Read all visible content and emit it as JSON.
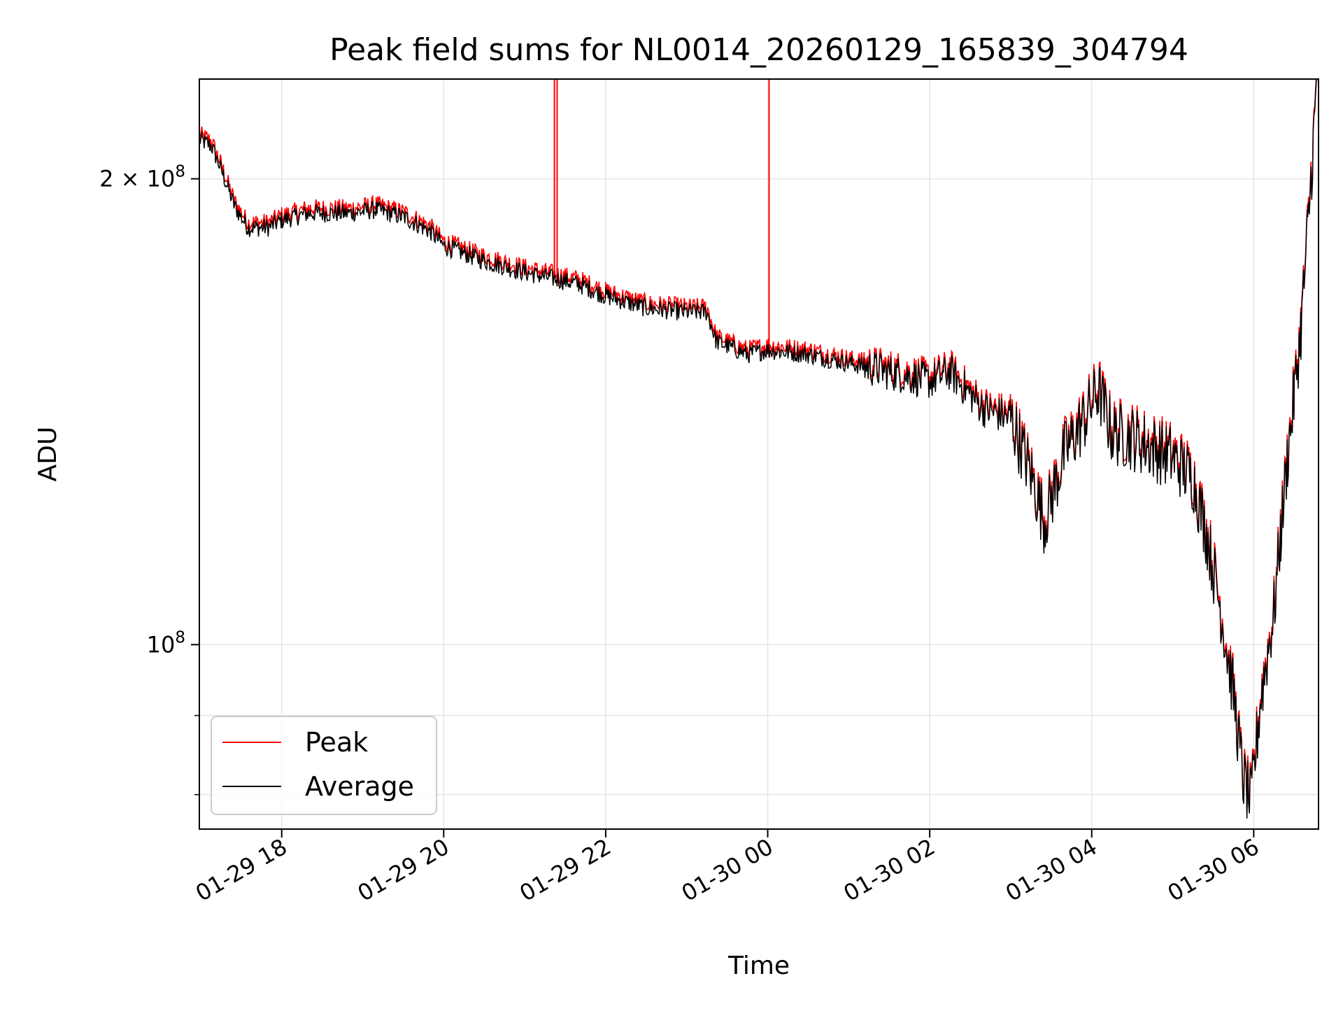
{
  "chart_data": {
    "type": "line",
    "title": "Peak field sums for NL0014_20260129_165839_304794",
    "xlabel": "Time",
    "ylabel": "ADU",
    "x_axis": {
      "type": "time",
      "range": [
        "2026-01-29 16:59",
        "2026-01-30 06:48"
      ],
      "ticks": [
        {
          "value": "2026-01-29 18:00",
          "label": "01-29 18"
        },
        {
          "value": "2026-01-29 20:00",
          "label": "01-29 20"
        },
        {
          "value": "2026-01-29 22:00",
          "label": "01-29 22"
        },
        {
          "value": "2026-01-30 00:00",
          "label": "01-30 00"
        },
        {
          "value": "2026-01-30 02:00",
          "label": "01-30 02"
        },
        {
          "value": "2026-01-30 04:00",
          "label": "01-30 04"
        },
        {
          "value": "2026-01-30 06:00",
          "label": "01-30 06"
        }
      ]
    },
    "y_axis": {
      "scale": "log",
      "range": [
        76000000,
        232000000
      ],
      "major_ticks": [
        {
          "value": 100000000,
          "label_base": "10",
          "label_exp": "8",
          "label_mult": ""
        },
        {
          "value": 200000000,
          "label_base": "10",
          "label_exp": "8",
          "label_mult": "2 × "
        }
      ],
      "minor_ticks": [
        80000000,
        90000000
      ]
    },
    "grid": true,
    "legend": {
      "placement": "lower-left",
      "entries": [
        {
          "name": "Peak",
          "color": "#ff0000"
        },
        {
          "name": "Average",
          "color": "#000000"
        }
      ]
    },
    "series": [
      {
        "name": "Average",
        "color": "#000000",
        "points": [
          [
            "2026-01-29 16:59",
            212000000
          ],
          [
            "2026-01-29 17:08",
            210000000
          ],
          [
            "2026-01-29 17:15",
            203000000
          ],
          [
            "2026-01-29 17:25",
            192000000
          ],
          [
            "2026-01-29 17:35",
            186000000
          ],
          [
            "2026-01-29 17:50",
            186000000
          ],
          [
            "2026-01-29 18:00",
            188000000
          ],
          [
            "2026-01-29 18:20",
            190000000
          ],
          [
            "2026-01-29 18:50",
            190000000
          ],
          [
            "2026-01-29 19:10",
            191000000
          ],
          [
            "2026-01-29 19:30",
            189000000
          ],
          [
            "2026-01-29 19:50",
            185000000
          ],
          [
            "2026-01-29 20:00",
            181000000
          ],
          [
            "2026-01-29 20:30",
            177000000
          ],
          [
            "2026-01-29 21:00",
            174000000
          ],
          [
            "2026-01-29 21:40",
            171000000
          ],
          [
            "2026-01-29 22:00",
            168000000
          ],
          [
            "2026-01-29 22:30",
            165000000
          ],
          [
            "2026-01-29 23:00",
            164000000
          ],
          [
            "2026-01-29 23:15",
            164000000
          ],
          [
            "2026-01-29 23:22",
            157000000
          ],
          [
            "2026-01-29 23:45",
            154000000
          ],
          [
            "2026-01-30 00:00",
            155000000
          ],
          [
            "2026-01-30 00:30",
            154000000
          ],
          [
            "2026-01-30 01:00",
            152000000
          ],
          [
            "2026-01-30 01:30",
            150000000
          ],
          [
            "2026-01-30 02:00",
            148000000
          ],
          [
            "2026-01-30 02:15",
            150000000
          ],
          [
            "2026-01-30 02:40",
            142000000
          ],
          [
            "2026-01-30 03:00",
            140000000
          ],
          [
            "2026-01-30 03:15",
            129000000
          ],
          [
            "2026-01-30 03:25",
            120000000
          ],
          [
            "2026-01-30 03:40",
            133000000
          ],
          [
            "2026-01-30 03:55",
            140000000
          ],
          [
            "2026-01-30 04:05",
            146000000
          ],
          [
            "2026-01-30 04:15",
            137000000
          ],
          [
            "2026-01-30 04:30",
            136000000
          ],
          [
            "2026-01-30 05:00",
            132000000
          ],
          [
            "2026-01-30 05:15",
            128000000
          ],
          [
            "2026-01-30 05:25",
            118000000
          ],
          [
            "2026-01-30 05:35",
            106000000
          ],
          [
            "2026-01-30 05:45",
            93000000
          ],
          [
            "2026-01-30 05:52",
            82000000
          ],
          [
            "2026-01-30 05:58",
            79000000
          ],
          [
            "2026-01-30 06:05",
            92000000
          ],
          [
            "2026-01-30 06:15",
            105000000
          ],
          [
            "2026-01-30 06:20",
            118000000
          ],
          [
            "2026-01-30 06:25",
            132000000
          ],
          [
            "2026-01-30 06:30",
            145000000
          ],
          [
            "2026-01-30 06:35",
            160000000
          ],
          [
            "2026-01-30 06:40",
            185000000
          ],
          [
            "2026-01-30 06:44",
            210000000
          ],
          [
            "2026-01-30 06:47",
            232000000
          ]
        ]
      },
      {
        "name": "Peak",
        "color": "#ff0000",
        "spikes": [
          [
            "2026-01-29 21:22",
            232000000
          ],
          [
            "2026-01-29 21:24",
            232000000
          ],
          [
            "2026-01-30 00:01",
            232000000
          ]
        ]
      }
    ]
  }
}
